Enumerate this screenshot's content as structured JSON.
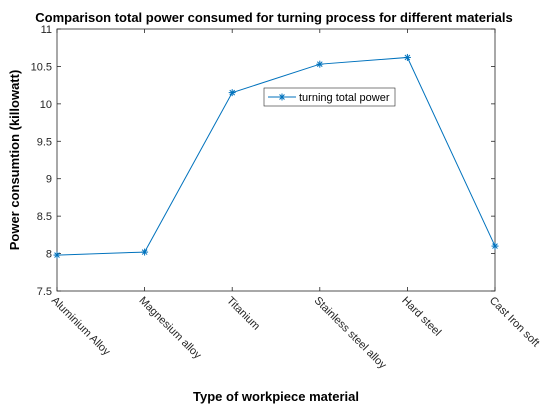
{
  "chart_data": {
    "type": "line",
    "title": "Comparison total power consumed for turning process for different materials",
    "xlabel": "Type of workpiece material",
    "ylabel": "Power consumtion (killowatt)",
    "categories": [
      "Aluminium Alloy",
      "Magnesium alloy",
      "Titanium",
      "Stainless steel alloy",
      "Hard steel",
      "Cast Iron soft"
    ],
    "series": [
      {
        "name": "turning total power",
        "values": [
          7.98,
          8.02,
          10.15,
          10.53,
          10.62,
          8.1
        ]
      }
    ],
    "ylim": [
      7.5,
      11
    ],
    "yticks": [
      "7.5",
      "8",
      "8.5",
      "9",
      "9.5",
      "10",
      "10.5",
      "11"
    ],
    "grid": false,
    "legend_position": "top-center",
    "marker": "asterisk",
    "line_color": "#0072BD"
  }
}
